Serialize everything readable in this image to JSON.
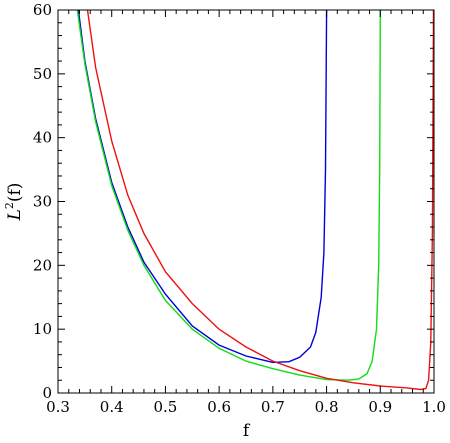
{
  "chart_data": {
    "type": "line",
    "title": "",
    "xlabel": "f",
    "ylabel": "L",
    "ylabel_superscript": "2",
    "ylabel_suffix": "(f)",
    "xlim": [
      0.3,
      1.0
    ],
    "ylim": [
      0,
      60
    ],
    "xticks": [
      0.3,
      0.4,
      0.5,
      0.6,
      0.7,
      0.8,
      0.9,
      1.0
    ],
    "xtick_labels": [
      "0.3",
      "0.4",
      "0.5",
      "0.6",
      "0.7",
      "0.8",
      "0.9",
      "1.0"
    ],
    "yticks": [
      0,
      10,
      20,
      30,
      40,
      50,
      60
    ],
    "ytick_labels": [
      "0",
      "10",
      "20",
      "30",
      "40",
      "50",
      "60"
    ],
    "grid": false,
    "legend": "none",
    "series": [
      {
        "color": "#0000dd",
        "points": [
          [
            0.338,
            60
          ],
          [
            0.35,
            52
          ],
          [
            0.37,
            43
          ],
          [
            0.4,
            33
          ],
          [
            0.43,
            26
          ],
          [
            0.46,
            20.5
          ],
          [
            0.5,
            15.5
          ],
          [
            0.55,
            10.5
          ],
          [
            0.6,
            7.5
          ],
          [
            0.65,
            5.8
          ],
          [
            0.7,
            4.8
          ],
          [
            0.73,
            4.9
          ],
          [
            0.75,
            5.6
          ],
          [
            0.77,
            7.2
          ],
          [
            0.78,
            9.5
          ],
          [
            0.79,
            15
          ],
          [
            0.795,
            22
          ],
          [
            0.798,
            35
          ],
          [
            0.8,
            60
          ]
        ]
      },
      {
        "color": "#11dd11",
        "points": [
          [
            0.336,
            60
          ],
          [
            0.35,
            51.5
          ],
          [
            0.37,
            42.5
          ],
          [
            0.4,
            32.5
          ],
          [
            0.43,
            25.5
          ],
          [
            0.46,
            20
          ],
          [
            0.5,
            14.5
          ],
          [
            0.55,
            10
          ],
          [
            0.6,
            7
          ],
          [
            0.65,
            5
          ],
          [
            0.7,
            3.8
          ],
          [
            0.75,
            2.8
          ],
          [
            0.8,
            2.1
          ],
          [
            0.84,
            2.0
          ],
          [
            0.86,
            2.2
          ],
          [
            0.875,
            3
          ],
          [
            0.885,
            5
          ],
          [
            0.893,
            10
          ],
          [
            0.897,
            20
          ],
          [
            0.899,
            35
          ],
          [
            0.9,
            60
          ]
        ]
      },
      {
        "color": "#ee1111",
        "points": [
          [
            0.355,
            60
          ],
          [
            0.37,
            51
          ],
          [
            0.4,
            39.5
          ],
          [
            0.43,
            31
          ],
          [
            0.46,
            25
          ],
          [
            0.5,
            19
          ],
          [
            0.55,
            14
          ],
          [
            0.6,
            10
          ],
          [
            0.65,
            7.2
          ],
          [
            0.7,
            5
          ],
          [
            0.75,
            3.5
          ],
          [
            0.8,
            2.3
          ],
          [
            0.85,
            1.6
          ],
          [
            0.9,
            1.1
          ],
          [
            0.95,
            0.8
          ],
          [
            0.975,
            0.55
          ],
          [
            0.985,
            0.7
          ],
          [
            0.99,
            2
          ],
          [
            0.994,
            8
          ],
          [
            0.997,
            25
          ],
          [
            0.999,
            60
          ]
        ]
      }
    ]
  }
}
